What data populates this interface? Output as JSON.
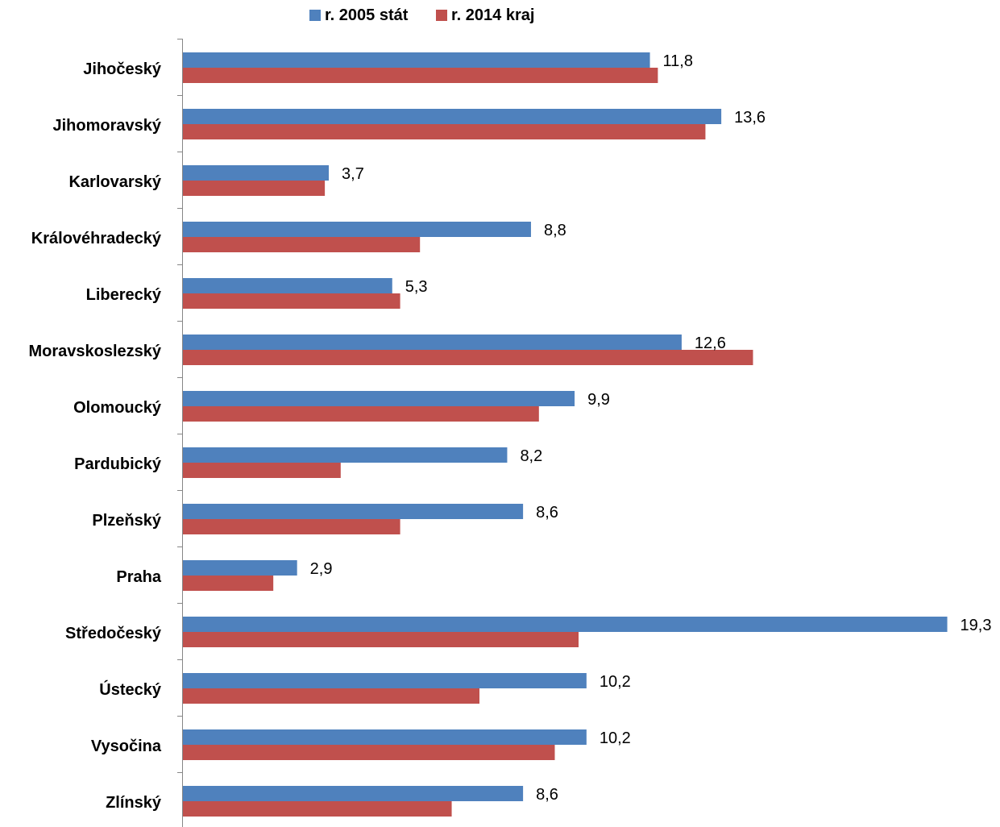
{
  "chart_data": {
    "type": "bar",
    "orientation": "horizontal",
    "categories": [
      "Jihočeský",
      "Jihomoravský",
      "Karlovarský",
      "Královéhradecký",
      "Liberecký",
      "Moravskoslezský",
      "Olomoucký",
      "Pardubický",
      "Plzeňský",
      "Praha",
      "Středočeský",
      "Ústecký",
      "Vysočina",
      "Zlínský"
    ],
    "series": [
      {
        "name": "r. 2005 stát",
        "color": "#4F81BD",
        "values": [
          11.8,
          13.6,
          3.7,
          8.8,
          5.3,
          12.6,
          9.9,
          8.2,
          8.6,
          2.9,
          19.3,
          10.2,
          10.2,
          8.6
        ],
        "labels": [
          "11,8",
          "13,6",
          "3,7",
          "8,8",
          "5,3",
          "12,6",
          "9,9",
          "8,2",
          "8,6",
          "2,9",
          "19,3",
          "10,2",
          "10,2",
          "8,6"
        ]
      },
      {
        "name": "r. 2014 kraj",
        "color": "#C0504D",
        "values": [
          12.0,
          13.2,
          3.6,
          6.0,
          5.5,
          14.4,
          9.0,
          4.0,
          5.5,
          2.3,
          10.0,
          7.5,
          9.4,
          6.8
        ]
      }
    ],
    "xlim": [
      0,
      20
    ],
    "grid": false,
    "legend_position": "top"
  }
}
